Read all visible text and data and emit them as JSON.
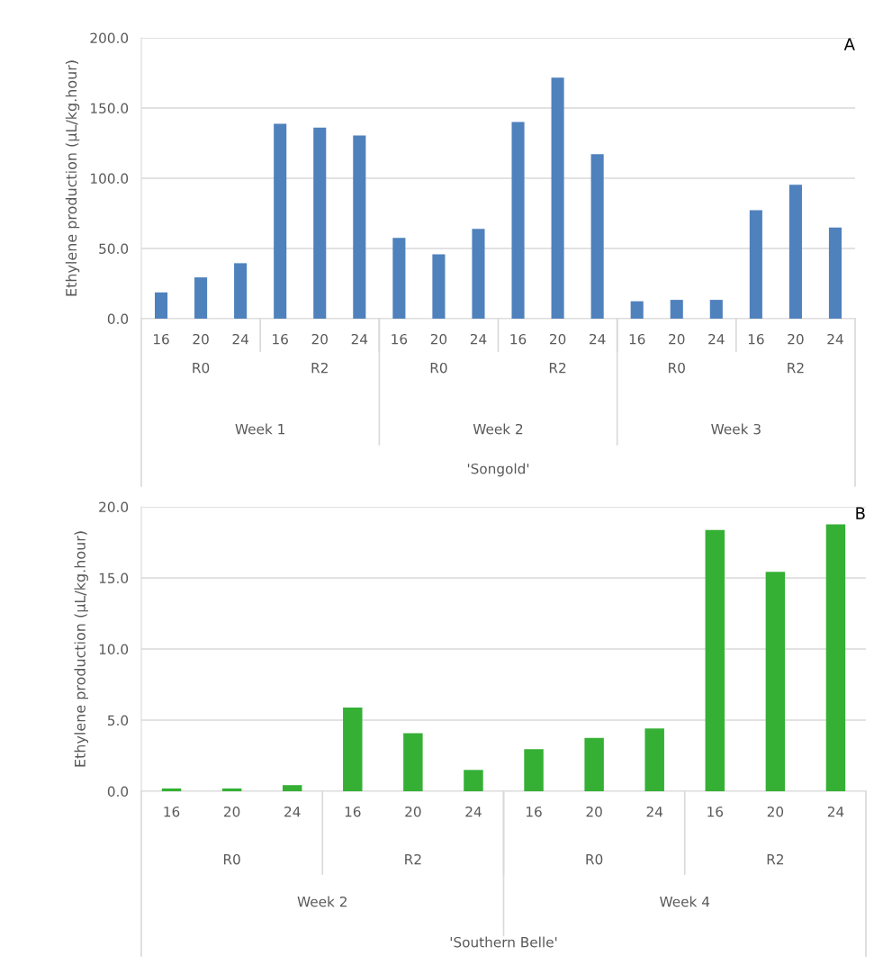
{
  "chart_data": [
    {
      "type": "bar",
      "title": "A",
      "ylabel": "Ethylene production (µL/kg.hour)",
      "xlabel": "'Songold'",
      "categories": [
        "16",
        "20",
        "24",
        "16",
        "20",
        "24",
        "16",
        "20",
        "24",
        "16",
        "20",
        "24",
        "16",
        "20",
        "24",
        "16",
        "20",
        "24"
      ],
      "series": [
        {
          "color": "#4f81bd",
          "values": [
            18.7,
            29.4,
            39.5,
            138.8,
            136.1,
            130.4,
            57.5,
            45.8,
            63.9,
            140.1,
            171.6,
            117.1,
            12.4,
            13.4,
            13.4,
            77.3,
            95.3,
            64.9
          ]
        }
      ],
      "annotations": [
        "R0",
        "R2",
        "R0",
        "R2",
        "R0",
        "R2",
        "Week 1",
        "Week 2",
        "Week 3"
      ],
      "ylim": [
        0,
        200
      ],
      "yticks": [
        {
          "value": 0,
          "label": "0.0"
        },
        {
          "value": 50,
          "label": "50.0"
        },
        {
          "value": 100,
          "label": "100.0"
        },
        {
          "value": 150,
          "label": "150.0"
        },
        {
          "value": 200,
          "label": "200.0"
        }
      ],
      "grid": "y",
      "legend": false
    },
    {
      "type": "bar",
      "title": "B",
      "ylabel": "Ethylene production (µL/kg.hour)",
      "xlabel": "'Southern Belle'",
      "categories": [
        "16",
        "20",
        "24",
        "16",
        "20",
        "24",
        "16",
        "20",
        "24",
        "16",
        "20",
        "24"
      ],
      "series": [
        {
          "color": "#35b035",
          "values": [
            0.2,
            0.2,
            0.43,
            5.88,
            4.09,
            1.5,
            2.96,
            3.75,
            4.42,
            18.37,
            15.42,
            18.77
          ]
        }
      ],
      "annotations": [
        "R0",
        "R2",
        "R0",
        "R2",
        "Week 2",
        "Week 4"
      ],
      "ylim": [
        0,
        20
      ],
      "yticks": [
        {
          "value": 0,
          "label": "0.0"
        },
        {
          "value": 5,
          "label": "5.0"
        },
        {
          "value": 10,
          "label": "10.0"
        },
        {
          "value": 15,
          "label": "15.0"
        },
        {
          "value": 20,
          "label": "20.0"
        }
      ],
      "grid": "y",
      "legend": false
    }
  ]
}
